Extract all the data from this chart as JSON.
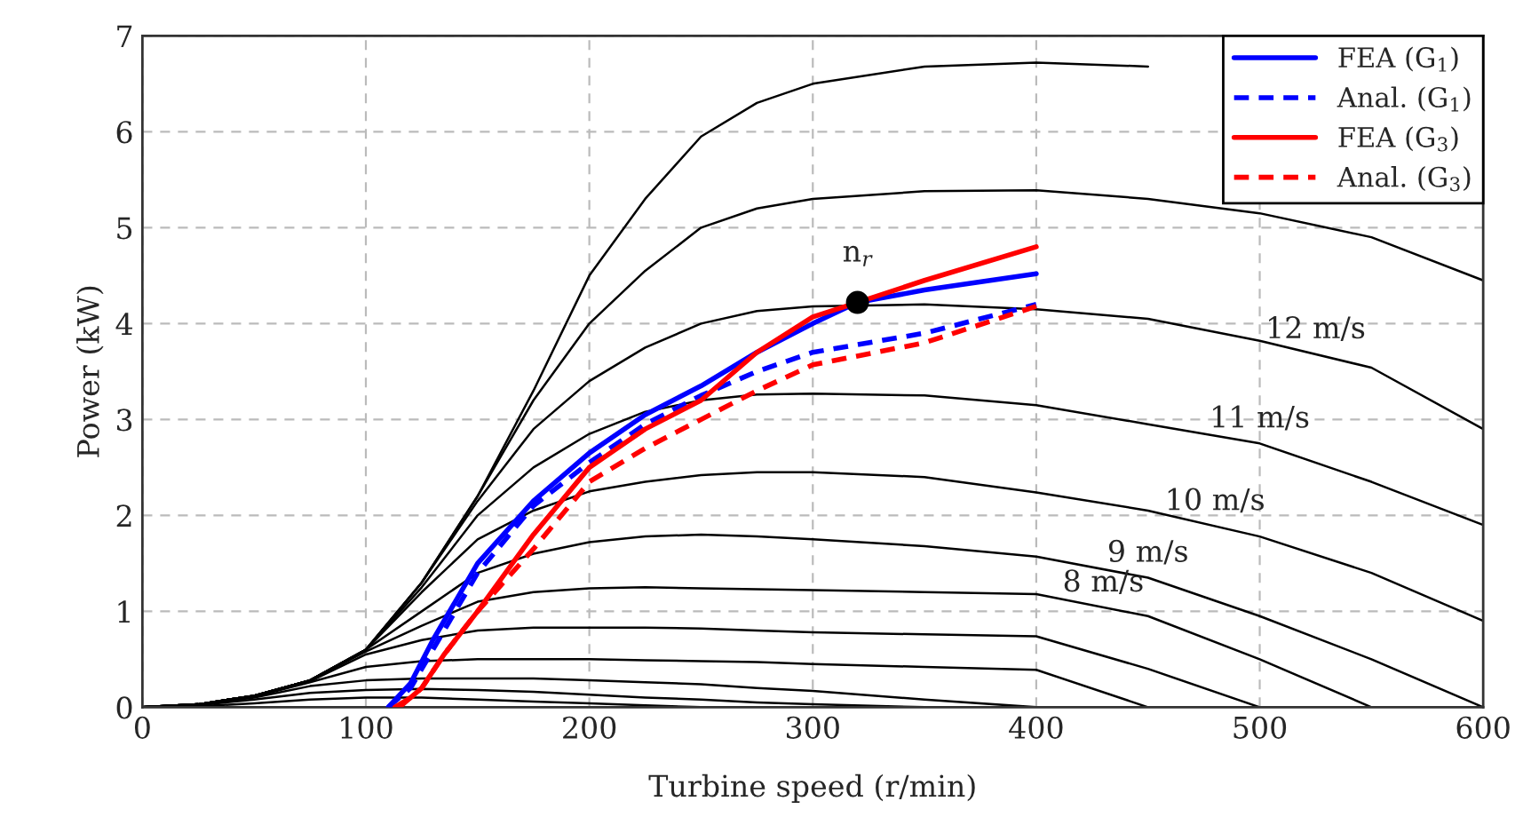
{
  "chart_data": {
    "type": "line",
    "xlabel": "Turbine speed (r/min)",
    "ylabel": "Power (kW)",
    "xlim": [
      0,
      600
    ],
    "ylim": [
      0,
      7
    ],
    "xticks": [
      0,
      100,
      200,
      300,
      400,
      500,
      600
    ],
    "yticks": [
      0,
      1,
      2,
      3,
      4,
      5,
      6,
      7
    ],
    "grid": true,
    "legend": "top right",
    "x": [
      0,
      25,
      50,
      75,
      100,
      125,
      150,
      175,
      200,
      225,
      250,
      275,
      300,
      350,
      400,
      450,
      500,
      550,
      600
    ],
    "series": [
      {
        "color": "#000000",
        "values": [
          0,
          0.01,
          0.04,
          0.08,
          0.1,
          0.1,
          0.08,
          0.06,
          0.04,
          0.02,
          0,
          null,
          null,
          null,
          null,
          null,
          null,
          null,
          null
        ]
      },
      {
        "color": "#000000",
        "values": [
          0,
          0.02,
          0.08,
          0.15,
          0.18,
          0.19,
          0.18,
          0.16,
          0.13,
          0.1,
          0.08,
          0.05,
          0.03,
          0,
          null,
          null,
          null,
          null,
          null
        ]
      },
      {
        "color": "#000000",
        "values": [
          0,
          0.03,
          0.1,
          0.22,
          0.28,
          0.3,
          0.3,
          0.3,
          0.28,
          0.26,
          0.24,
          0.2,
          0.17,
          0.08,
          0,
          null,
          null,
          null,
          null
        ]
      },
      {
        "color": "#000000",
        "values": [
          0,
          0.03,
          0.11,
          0.26,
          0.42,
          0.48,
          0.5,
          0.5,
          0.5,
          0.49,
          0.48,
          0.47,
          0.45,
          0.42,
          0.39,
          0,
          null,
          null,
          null
        ]
      },
      {
        "color": "#000000",
        "values": [
          0,
          0.03,
          0.12,
          0.27,
          0.55,
          0.7,
          0.8,
          0.83,
          0.83,
          0.83,
          0.82,
          0.8,
          0.78,
          0.76,
          0.74,
          0.4,
          0,
          null,
          null
        ]
      },
      {
        "color": "#000000",
        "values": [
          0,
          0.03,
          0.12,
          0.28,
          0.58,
          0.85,
          1.1,
          1.2,
          1.24,
          1.25,
          1.24,
          1.23,
          1.22,
          1.2,
          1.18,
          0.95,
          0.5,
          0,
          null
        ]
      },
      {
        "color": "#000000",
        "values": [
          0,
          0.03,
          0.12,
          0.28,
          0.6,
          1.0,
          1.4,
          1.6,
          1.72,
          1.78,
          1.8,
          1.78,
          1.75,
          1.68,
          1.57,
          1.35,
          0.95,
          0.5,
          0
        ]
      },
      {
        "color": "#000000",
        "values": [
          0,
          0.03,
          0.12,
          0.28,
          0.6,
          1.2,
          1.75,
          2.05,
          2.25,
          2.35,
          2.42,
          2.45,
          2.45,
          2.4,
          2.24,
          2.05,
          1.78,
          1.4,
          0.9
        ]
      },
      {
        "color": "#000000",
        "values": [
          0,
          0.03,
          0.12,
          0.28,
          0.6,
          1.25,
          2.0,
          2.5,
          2.85,
          3.08,
          3.2,
          3.26,
          3.27,
          3.25,
          3.15,
          2.95,
          2.75,
          2.35,
          1.9
        ]
      },
      {
        "color": "#000000",
        "values": [
          0,
          0.03,
          0.12,
          0.28,
          0.6,
          1.3,
          2.15,
          2.9,
          3.4,
          3.75,
          4.0,
          4.13,
          4.18,
          4.2,
          4.15,
          4.05,
          3.82,
          3.54,
          2.9
        ]
      },
      {
        "color": "#000000",
        "values": [
          0,
          0.03,
          0.12,
          0.28,
          0.6,
          1.3,
          2.2,
          3.2,
          4.0,
          4.55,
          5.0,
          5.2,
          5.3,
          5.38,
          5.39,
          5.3,
          5.15,
          4.9,
          4.45
        ]
      },
      {
        "color": "#000000",
        "values": [
          0,
          0.03,
          0.12,
          0.28,
          0.6,
          1.3,
          2.2,
          3.3,
          4.5,
          5.3,
          5.95,
          6.3,
          6.5,
          6.68,
          6.72,
          6.68,
          null,
          null,
          null
        ]
      },
      {
        "name": "FEA (G$_{1}$)",
        "color": "#0000ff",
        "line_style": "solid",
        "x": [
          110,
          120,
          130,
          140,
          150,
          175,
          200,
          225,
          250,
          275,
          300,
          320,
          350,
          400
        ],
        "values": [
          0,
          0.25,
          0.7,
          1.1,
          1.5,
          2.15,
          2.65,
          3.05,
          3.35,
          3.7,
          4.0,
          4.22,
          4.35,
          4.52
        ]
      },
      {
        "name": "Anal. (G$_{1}$)",
        "color": "#0000ff",
        "line_style": "dashed",
        "x": [
          110,
          120,
          130,
          140,
          150,
          175,
          200,
          225,
          250,
          275,
          300,
          350,
          400
        ],
        "values": [
          0,
          0.2,
          0.6,
          1.0,
          1.4,
          2.1,
          2.55,
          2.95,
          3.25,
          3.5,
          3.7,
          3.9,
          4.2
        ]
      },
      {
        "name": "FEA (G$_{3}$)",
        "color": "#ff0000",
        "line_style": "solid",
        "x": [
          113,
          120,
          125,
          135,
          150,
          175,
          200,
          225,
          250,
          275,
          300,
          320,
          350,
          400
        ],
        "values": [
          0,
          0.1,
          0.2,
          0.55,
          1.0,
          1.8,
          2.5,
          2.9,
          3.2,
          3.7,
          4.07,
          4.22,
          4.45,
          4.8
        ]
      },
      {
        "name": "Anal. (G$_{3}$)",
        "color": "#ff0000",
        "line_style": "dashed",
        "x": [
          115,
          125,
          135,
          150,
          175,
          200,
          225,
          250,
          275,
          300,
          350,
          400
        ],
        "values": [
          0,
          0.2,
          0.55,
          1.0,
          1.65,
          2.35,
          2.7,
          3.0,
          3.3,
          3.57,
          3.8,
          4.18
        ]
      },
      {
        "type": "scatter",
        "marker": "circle",
        "color": "#000000",
        "x": [
          320
        ],
        "values": [
          4.22
        ]
      }
    ],
    "annotations": [
      {
        "text": "n$_{r}$",
        "x": 320,
        "y": 4.22
      },
      {
        "text": "8 m/s",
        "x": 430,
        "y": 1.04
      },
      {
        "text": "9 m/s",
        "x": 450,
        "y": 1.35
      },
      {
        "text": "10 m/s",
        "x": 480,
        "y": 1.89
      },
      {
        "text": "11 m/s",
        "x": 500,
        "y": 2.75
      },
      {
        "text": "12 m/s",
        "x": 525,
        "y": 3.68
      }
    ]
  }
}
